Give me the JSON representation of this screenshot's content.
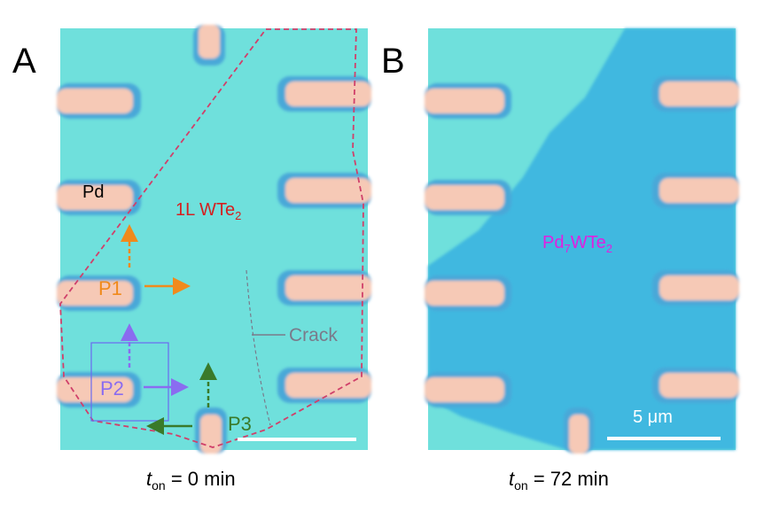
{
  "panels": [
    {
      "letter": "A",
      "labels": {
        "pd": "Pd",
        "material": "1L WTe",
        "material_sub": "2",
        "p1": "P1",
        "p2": "P2",
        "p3": "P3",
        "crack": "Crack"
      },
      "caption": {
        "t": "t",
        "sub": "on",
        "rest": " = 0 min"
      }
    },
    {
      "letter": "B",
      "labels": {
        "material_a": "Pd",
        "material_sub1": "7",
        "material_b": "WTe",
        "material_sub2": "2",
        "scale": "5 μm"
      },
      "caption": {
        "t": "t",
        "sub": "on",
        "rest": " = 72 min"
      }
    }
  ],
  "colors": {
    "substrate": "#6fe0dc",
    "flake_b": "#3fb8e0",
    "electrode": "#f6c9b6",
    "electrode_halo": "#4aa8d8",
    "outline": "#d0406a",
    "p1": "#f08a1c",
    "p2": "#8a6cf0",
    "p3": "#3a7a2a",
    "label_wte2": "#d42020",
    "label_pd7": "#e020e0",
    "crack": "#7a7a8a"
  }
}
